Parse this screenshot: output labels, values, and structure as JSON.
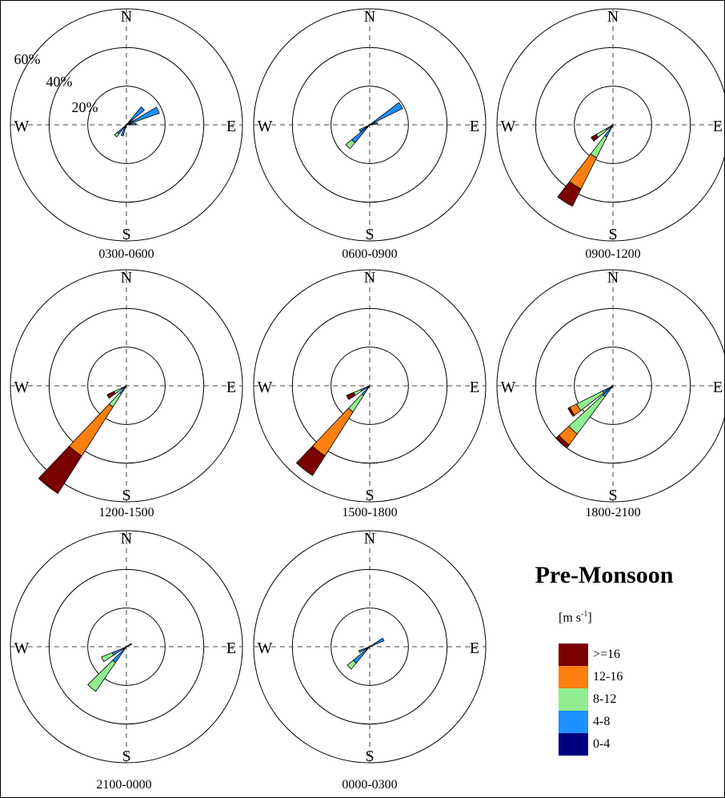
{
  "chart_data": {
    "type": "polar-bar",
    "title": "Pre-Monsoon",
    "directions": [
      "N",
      "E",
      "S",
      "W"
    ],
    "radial_ticks": [
      "20%",
      "40%",
      "60%"
    ],
    "radial_values": [
      20,
      40,
      60
    ],
    "bins": [
      {
        "label": ">=16",
        "color": "#7b0000"
      },
      {
        "label": "12-16",
        "color": "#ff7f0e"
      },
      {
        "label": "8-12",
        "color": "#90ee90"
      },
      {
        "label": "4-8",
        "color": "#1e90ff"
      },
      {
        "label": "0-4",
        "color": "#000080"
      }
    ],
    "legend_unit": "[m s",
    "legend_unit_sup": "-1",
    "legend_unit_close": "]",
    "panels": [
      {
        "label": "0300-0600",
        "wedges": [
          {
            "dir": 65,
            "stack": [
              [
                "#000080",
                4
              ],
              [
                "#1e90ff",
                14
              ]
            ]
          },
          {
            "dir": 45,
            "stack": [
              [
                "#000080",
                4
              ],
              [
                "#1e90ff",
                8
              ]
            ]
          },
          {
            "dir": 225,
            "stack": [
              [
                "#000080",
                2
              ],
              [
                "#1e90ff",
                4
              ],
              [
                "#90ee90",
                2
              ]
            ]
          },
          {
            "dir": 202,
            "stack": [
              [
                "#000080",
                1
              ],
              [
                "#1e90ff",
                5
              ]
            ]
          },
          {
            "dir": 85,
            "stack": [
              [
                "#000080",
                2
              ],
              [
                "#1e90ff",
                3
              ]
            ]
          }
        ]
      },
      {
        "label": "0600-0900",
        "wedges": [
          {
            "dir": 58,
            "stack": [
              [
                "#000080",
                3
              ],
              [
                "#1e90ff",
                16
              ]
            ]
          },
          {
            "dir": 225,
            "stack": [
              [
                "#000080",
                2
              ],
              [
                "#1e90ff",
                10
              ],
              [
                "#90ee90",
                4
              ]
            ]
          },
          {
            "dir": 240,
            "stack": [
              [
                "#000080",
                2
              ],
              [
                "#1e90ff",
                4
              ]
            ]
          },
          {
            "dir": 78,
            "stack": [
              [
                "#000080",
                1
              ],
              [
                "#1e90ff",
                3
              ]
            ]
          }
        ]
      },
      {
        "label": "0900-1200",
        "wedges": [
          {
            "dir": 212,
            "stack": [
              [
                "#000080",
                1
              ],
              [
                "#1e90ff",
                6
              ],
              [
                "#90ee90",
                12
              ],
              [
                "#ff7f0e",
                18
              ],
              [
                "#7b0000",
                10
              ]
            ]
          },
          {
            "dir": 235,
            "stack": [
              [
                "#000080",
                1
              ],
              [
                "#1e90ff",
                3
              ],
              [
                "#90ee90",
                6
              ],
              [
                "#7b0000",
                3
              ]
            ]
          }
        ]
      },
      {
        "label": "1200-1500",
        "wedges": [
          {
            "dir": 218,
            "stack": [
              [
                "#000080",
                1
              ],
              [
                "#1e90ff",
                4
              ],
              [
                "#90ee90",
                8
              ],
              [
                "#ff7f0e",
                30
              ],
              [
                "#7b0000",
                23
              ]
            ]
          },
          {
            "dir": 240,
            "stack": [
              [
                "#000080",
                1
              ],
              [
                "#1e90ff",
                2
              ],
              [
                "#90ee90",
                4
              ],
              [
                "#7b0000",
                4
              ]
            ]
          }
        ]
      },
      {
        "label": "1500-1800",
        "wedges": [
          {
            "dir": 218,
            "stack": [
              [
                "#000080",
                1
              ],
              [
                "#1e90ff",
                5
              ],
              [
                "#90ee90",
                10
              ],
              [
                "#ff7f0e",
                27
              ],
              [
                "#7b0000",
                12
              ]
            ]
          },
          {
            "dir": 242,
            "stack": [
              [
                "#000080",
                1
              ],
              [
                "#1e90ff",
                4
              ],
              [
                "#90ee90",
                4
              ],
              [
                "#7b0000",
                4
              ]
            ]
          }
        ]
      },
      {
        "label": "1800-2100",
        "wedges": [
          {
            "dir": 222,
            "stack": [
              [
                "#000080",
                1
              ],
              [
                "#1e90ff",
                6
              ],
              [
                "#90ee90",
                24
              ],
              [
                "#ff7f0e",
                7
              ],
              [
                "#7b0000",
                2
              ]
            ]
          },
          {
            "dir": 238,
            "stack": [
              [
                "#000080",
                1
              ],
              [
                "#1e90ff",
                5
              ],
              [
                "#90ee90",
                15
              ],
              [
                "#ff7f0e",
                4
              ],
              [
                "#7b0000",
                1
              ]
            ]
          }
        ]
      },
      {
        "label": "2100-0000",
        "wedges": [
          {
            "dir": 220,
            "stack": [
              [
                "#000080",
                2
              ],
              [
                "#1e90ff",
                8
              ],
              [
                "#90ee90",
                18
              ]
            ]
          },
          {
            "dir": 242,
            "stack": [
              [
                "#000080",
                2
              ],
              [
                "#1e90ff",
                6
              ],
              [
                "#90ee90",
                6
              ]
            ]
          },
          {
            "dir": 60,
            "stack": [
              [
                "#000080",
                2
              ],
              [
                "#1e90ff",
                1
              ]
            ]
          }
        ]
      },
      {
        "label": "0000-0300",
        "wedges": [
          {
            "dir": 225,
            "stack": [
              [
                "#000080",
                2
              ],
              [
                "#1e90ff",
                9
              ],
              [
                "#90ee90",
                4
              ]
            ]
          },
          {
            "dir": 62,
            "stack": [
              [
                "#000080",
                3
              ],
              [
                "#1e90ff",
                5
              ]
            ]
          },
          {
            "dir": 245,
            "stack": [
              [
                "#000080",
                1
              ],
              [
                "#1e90ff",
                5
              ]
            ]
          }
        ]
      }
    ]
  }
}
